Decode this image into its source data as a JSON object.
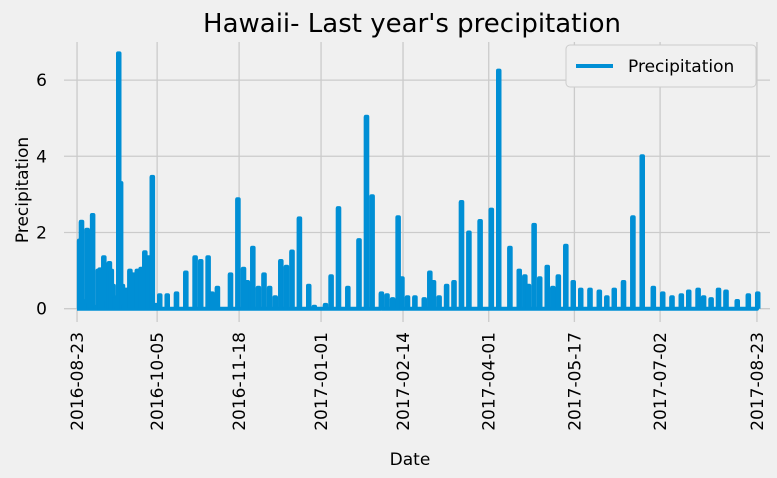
{
  "chart_data": {
    "type": "line",
    "title": "Hawaii- Last year's precipitation",
    "xlabel": "Date",
    "ylabel": "Precipitation",
    "ylim": [
      -0.35,
      7.0
    ],
    "xlim": [
      "2016-08-16",
      "2017-08-30"
    ],
    "grid": true,
    "legend_placement": "top-right",
    "colors": {
      "line": "#008fd5",
      "background": "#f0f0f0",
      "grid": "#cbcbcb"
    },
    "x_ticks": [
      "2016-08-23",
      "2016-10-05",
      "2016-11-18",
      "2017-01-01",
      "2017-02-14",
      "2017-04-01",
      "2017-05-17",
      "2017-07-02",
      "2017-08-23"
    ],
    "y_ticks": [
      0,
      2,
      4,
      6
    ],
    "series": [
      {
        "name": "Precipitation",
        "x": [
          "2016-08-23",
          "2016-08-24",
          "2016-08-25",
          "2016-08-26",
          "2016-08-27",
          "2016-08-28",
          "2016-08-29",
          "2016-08-30",
          "2016-08-31",
          "2016-09-01",
          "2016-09-02",
          "2016-09-03",
          "2016-09-04",
          "2016-09-05",
          "2016-09-06",
          "2016-09-07",
          "2016-09-08",
          "2016-09-09",
          "2016-09-10",
          "2016-09-11",
          "2016-09-12",
          "2016-09-13",
          "2016-09-14",
          "2016-09-15",
          "2016-09-16",
          "2016-09-17",
          "2016-09-18",
          "2016-09-20",
          "2016-09-22",
          "2016-09-24",
          "2016-09-26",
          "2016-09-28",
          "2016-09-30",
          "2016-10-02",
          "2016-10-04",
          "2016-10-06",
          "2016-10-10",
          "2016-10-15",
          "2016-10-20",
          "2016-10-25",
          "2016-10-28",
          "2016-11-01",
          "2016-11-03",
          "2016-11-06",
          "2016-11-09",
          "2016-11-13",
          "2016-11-17",
          "2016-11-20",
          "2016-11-22",
          "2016-11-25",
          "2016-11-28",
          "2016-12-01",
          "2016-12-04",
          "2016-12-07",
          "2016-12-10",
          "2016-12-13",
          "2016-12-16",
          "2016-12-20",
          "2016-12-25",
          "2016-12-28",
          "2016-12-31",
          "2017-01-03",
          "2017-01-06",
          "2017-01-10",
          "2017-01-15",
          "2017-01-21",
          "2017-01-25",
          "2017-01-28",
          "2017-02-02",
          "2017-02-05",
          "2017-02-08",
          "2017-02-11",
          "2017-02-13",
          "2017-02-16",
          "2017-02-20",
          "2017-02-25",
          "2017-02-28",
          "2017-03-02",
          "2017-03-05",
          "2017-03-09",
          "2017-03-13",
          "2017-03-17",
          "2017-03-21",
          "2017-03-27",
          "2017-04-02",
          "2017-04-06",
          "2017-04-12",
          "2017-04-17",
          "2017-04-20",
          "2017-04-22",
          "2017-04-25",
          "2017-04-28",
          "2017-05-02",
          "2017-05-05",
          "2017-05-08",
          "2017-05-12",
          "2017-05-16",
          "2017-05-20",
          "2017-05-25",
          "2017-05-30",
          "2017-06-03",
          "2017-06-07",
          "2017-06-12",
          "2017-06-17",
          "2017-06-22",
          "2017-06-28",
          "2017-07-03",
          "2017-07-08",
          "2017-07-13",
          "2017-07-17",
          "2017-07-22",
          "2017-07-25",
          "2017-07-29",
          "2017-08-02",
          "2017-08-06",
          "2017-08-12",
          "2017-08-18",
          "2017-08-23"
        ],
        "values": [
          0.0,
          1.79,
          2.28,
          0.05,
          0.2,
          2.07,
          0.17,
          0.05,
          2.46,
          0.01,
          0.05,
          1.0,
          1.03,
          0.05,
          1.35,
          1.16,
          0.22,
          1.2,
          1.0,
          0.6,
          0.3,
          0.05,
          6.7,
          3.3,
          0.6,
          0.1,
          0.5,
          1.0,
          0.9,
          1.0,
          1.05,
          1.48,
          1.35,
          3.46,
          0.1,
          0.35,
          0.35,
          0.4,
          0.95,
          1.35,
          1.25,
          1.35,
          0.4,
          0.55,
          0.0,
          0.9,
          2.87,
          1.05,
          0.7,
          1.6,
          0.55,
          0.9,
          0.55,
          0.3,
          1.25,
          1.1,
          1.5,
          2.37,
          0.6,
          0.05,
          0.0,
          0.1,
          0.85,
          2.64,
          0.55,
          1.8,
          5.04,
          2.95,
          0.4,
          0.35,
          0.25,
          2.4,
          0.8,
          0.3,
          0.3,
          0.25,
          0.95,
          0.7,
          0.3,
          0.6,
          0.7,
          2.8,
          2.0,
          2.3,
          2.6,
          6.25,
          1.6,
          1.0,
          0.85,
          0.6,
          2.2,
          0.8,
          1.1,
          0.55,
          0.85,
          1.65,
          0.7,
          0.5,
          0.5,
          0.45,
          0.3,
          0.5,
          0.7,
          2.4,
          4.0,
          0.55,
          0.4,
          0.3,
          0.35,
          0.45,
          0.5,
          0.3,
          0.25,
          0.5,
          0.45,
          0.2,
          0.35,
          0.4
        ]
      }
    ]
  }
}
